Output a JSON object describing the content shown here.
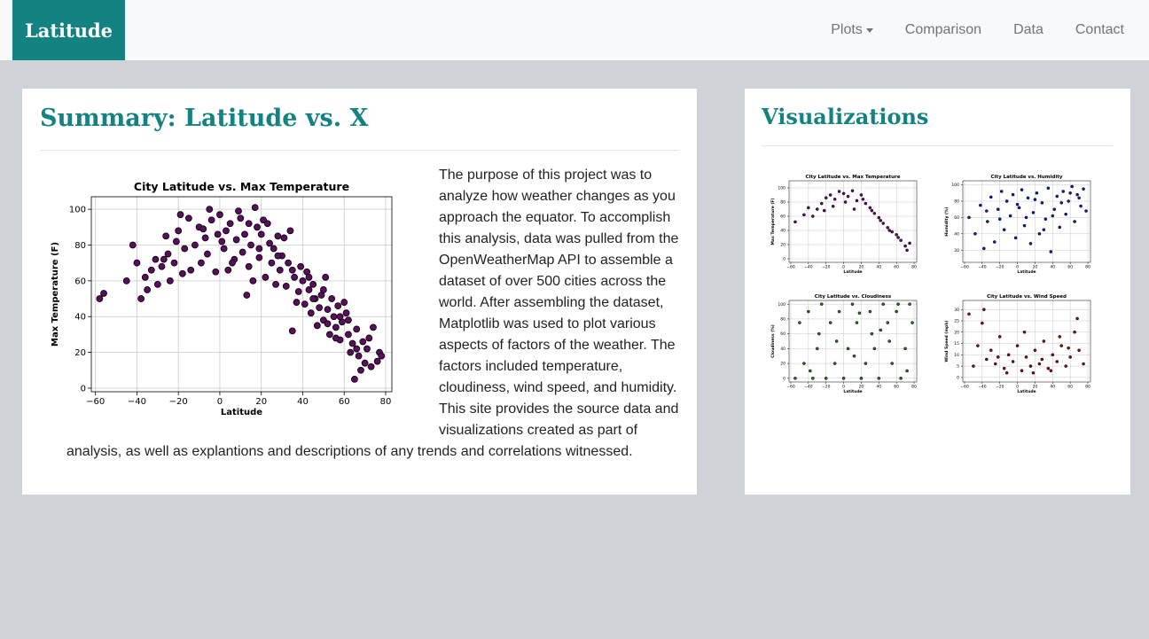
{
  "navbar": {
    "brand": "Latitude",
    "links": [
      {
        "label": "Plots",
        "dropdown": true
      },
      {
        "label": "Comparison"
      },
      {
        "label": "Data"
      },
      {
        "label": "Contact"
      }
    ]
  },
  "summary": {
    "title": "Summary: Latitude vs. X",
    "text": "The purpose of this project was to analyze how weather changes as you approach the equator. To accomplish this analysis, data was pulled from the OpenWeatherMap API to assemble a dataset of over 500 cities across the world. After assembling the dataset, Matplotlib was used to plot various aspects of factors of the weather. The factors included temperature, cloudiness, wind speed, and humidity. This site provides the source data and visualizations created as part of analysis, as well as explantions and descriptions of any trends and correlations witnessed."
  },
  "visualizations": {
    "title": "Visualizations"
  },
  "colors": {
    "brand": "#148280",
    "temperature": "#5b0c5e",
    "humidity": "#0b1f9a",
    "cloudiness": "#1e6a1e",
    "wind": "#7a0f0f"
  },
  "chart_data": [
    {
      "type": "scatter",
      "title": "City Latitude vs. Max Temperature",
      "xlabel": "Latitude",
      "ylabel": "Max Temperature (F)",
      "xlim": [
        -62,
        83
      ],
      "ylim": [
        -2,
        107
      ],
      "xticks": [
        -60,
        -40,
        -20,
        0,
        20,
        40,
        60,
        80
      ],
      "yticks": [
        0,
        20,
        40,
        60,
        80,
        100
      ],
      "grid": true,
      "color": "#5b0c5e",
      "points": [
        [
          -58,
          50
        ],
        [
          -56,
          53
        ],
        [
          -45,
          60
        ],
        [
          -42,
          80
        ],
        [
          -40,
          70
        ],
        [
          -38,
          50
        ],
        [
          -36,
          62
        ],
        [
          -35,
          55
        ],
        [
          -33,
          66
        ],
        [
          -31,
          72
        ],
        [
          -30,
          58
        ],
        [
          -28,
          68
        ],
        [
          -26,
          85
        ],
        [
          -25,
          75
        ],
        [
          -24,
          60
        ],
        [
          -22,
          70
        ],
        [
          -20,
          88
        ],
        [
          -19,
          97
        ],
        [
          -17,
          78
        ],
        [
          -15,
          95
        ],
        [
          -14,
          66
        ],
        [
          -12,
          80
        ],
        [
          -10,
          90
        ],
        [
          -9,
          70
        ],
        [
          -7,
          84
        ],
        [
          -5,
          100
        ],
        [
          -4,
          94
        ],
        [
          -2,
          65
        ],
        [
          -1,
          86
        ],
        [
          0,
          97
        ],
        [
          2,
          78
        ],
        [
          3,
          88
        ],
        [
          5,
          92
        ],
        [
          7,
          72
        ],
        [
          8,
          83
        ],
        [
          10,
          95
        ],
        [
          11,
          76
        ],
        [
          12,
          86
        ],
        [
          13,
          52
        ],
        [
          14,
          68
        ],
        [
          15,
          80
        ],
        [
          17,
          101
        ],
        [
          18,
          90
        ],
        [
          19,
          73
        ],
        [
          20,
          86
        ],
        [
          21,
          94
        ],
        [
          22,
          62
        ],
        [
          24,
          81
        ],
        [
          25,
          70
        ],
        [
          26,
          78
        ],
        [
          28,
          85
        ],
        [
          29,
          66
        ],
        [
          30,
          74
        ],
        [
          32,
          57
        ],
        [
          33,
          70
        ],
        [
          34,
          88
        ],
        [
          35,
          32
        ],
        [
          36,
          62
        ],
        [
          38,
          54
        ],
        [
          39,
          68
        ],
        [
          40,
          60
        ],
        [
          41,
          47
        ],
        [
          42,
          65
        ],
        [
          43,
          55
        ],
        [
          44,
          42
        ],
        [
          45,
          58
        ],
        [
          46,
          50
        ],
        [
          47,
          35
        ],
        [
          48,
          45
        ],
        [
          49,
          52
        ],
        [
          50,
          38
        ],
        [
          51,
          62
        ],
        [
          52,
          44
        ],
        [
          53,
          30
        ],
        [
          54,
          50
        ],
        [
          55,
          40
        ],
        [
          56,
          34
        ],
        [
          57,
          46
        ],
        [
          58,
          27
        ],
        [
          59,
          37
        ],
        [
          60,
          48
        ],
        [
          61,
          42
        ],
        [
          62,
          30
        ],
        [
          63,
          20
        ],
        [
          64,
          25
        ],
        [
          65,
          5
        ],
        [
          66,
          33
        ],
        [
          67,
          18
        ],
        [
          68,
          10
        ],
        [
          69,
          26
        ],
        [
          70,
          14
        ],
        [
          71,
          22
        ],
        [
          73,
          12
        ],
        [
          74,
          34
        ],
        [
          76,
          15
        ],
        [
          77,
          20
        ],
        [
          78,
          18
        ],
        [
          -21,
          82
        ],
        [
          -6,
          75
        ],
        [
          4,
          66
        ],
        [
          9,
          99
        ],
        [
          16,
          60
        ],
        [
          23,
          92
        ],
        [
          27,
          58
        ],
        [
          31,
          84
        ],
        [
          37,
          48
        ],
        [
          43,
          62
        ],
        [
          50,
          55
        ],
        [
          56,
          28
        ],
        [
          62,
          38
        ],
        [
          -27,
          72
        ],
        [
          -18,
          64
        ],
        [
          -8,
          89
        ],
        [
          1,
          82
        ],
        [
          6,
          70
        ],
        [
          14,
          92
        ],
        [
          19,
          78
        ],
        [
          28,
          74
        ],
        [
          35,
          66
        ],
        [
          45,
          50
        ],
        [
          52,
          36
        ],
        [
          58,
          40
        ],
        [
          66,
          22
        ],
        [
          72,
          28
        ]
      ]
    },
    {
      "type": "scatter",
      "title": "City Latitude vs. Max Temperature",
      "xlabel": "Latitude",
      "ylabel": "Max Temperature (F)",
      "xlim": [
        -62,
        83
      ],
      "ylim": [
        -5,
        110
      ],
      "xticks": [
        -60,
        -40,
        -20,
        0,
        20,
        40,
        60,
        80
      ],
      "yticks": [
        0,
        20,
        40,
        60,
        80,
        100
      ],
      "grid": true,
      "color": "#5b0c5e",
      "points": [
        [
          -55,
          52
        ],
        [
          -45,
          62
        ],
        [
          -40,
          72
        ],
        [
          -35,
          60
        ],
        [
          -30,
          70
        ],
        [
          -25,
          78
        ],
        [
          -20,
          86
        ],
        [
          -15,
          90
        ],
        [
          -10,
          84
        ],
        [
          -5,
          95
        ],
        [
          0,
          92
        ],
        [
          5,
          88
        ],
        [
          10,
          96
        ],
        [
          15,
          82
        ],
        [
          20,
          90
        ],
        [
          25,
          78
        ],
        [
          30,
          72
        ],
        [
          35,
          64
        ],
        [
          40,
          58
        ],
        [
          45,
          50
        ],
        [
          50,
          44
        ],
        [
          55,
          38
        ],
        [
          60,
          34
        ],
        [
          65,
          26
        ],
        [
          70,
          18
        ],
        [
          75,
          22
        ],
        [
          -22,
          68
        ],
        [
          -12,
          74
        ],
        [
          2,
          80
        ],
        [
          12,
          70
        ],
        [
          22,
          84
        ],
        [
          32,
          68
        ],
        [
          42,
          54
        ],
        [
          52,
          40
        ],
        [
          62,
          30
        ],
        [
          72,
          12
        ]
      ]
    },
    {
      "type": "scatter",
      "title": "City Latitude vs. Humidity",
      "xlabel": "Latitude",
      "ylabel": "Humidity (%)",
      "xlim": [
        -62,
        83
      ],
      "ylim": [
        5,
        105
      ],
      "xticks": [
        -60,
        -40,
        -20,
        0,
        20,
        40,
        60,
        80
      ],
      "yticks": [
        20,
        40,
        60,
        80,
        100
      ],
      "grid": true,
      "color": "#0b1f9a",
      "points": [
        [
          -55,
          60
        ],
        [
          -48,
          40
        ],
        [
          -42,
          75
        ],
        [
          -38,
          22
        ],
        [
          -34,
          55
        ],
        [
          -30,
          85
        ],
        [
          -26,
          30
        ],
        [
          -22,
          70
        ],
        [
          -18,
          92
        ],
        [
          -15,
          45
        ],
        [
          -12,
          80
        ],
        [
          -8,
          62
        ],
        [
          -5,
          88
        ],
        [
          -2,
          35
        ],
        [
          2,
          72
        ],
        [
          5,
          94
        ],
        [
          8,
          50
        ],
        [
          12,
          84
        ],
        [
          15,
          28
        ],
        [
          18,
          66
        ],
        [
          22,
          90
        ],
        [
          25,
          40
        ],
        [
          28,
          78
        ],
        [
          32,
          58
        ],
        [
          35,
          96
        ],
        [
          38,
          18
        ],
        [
          42,
          70
        ],
        [
          45,
          86
        ],
        [
          48,
          48
        ],
        [
          52,
          92
        ],
        [
          55,
          64
        ],
        [
          58,
          80
        ],
        [
          62,
          98
        ],
        [
          65,
          55
        ],
        [
          68,
          88
        ],
        [
          72,
          74
        ],
        [
          75,
          95
        ],
        [
          78,
          68
        ],
        [
          -20,
          58
        ],
        [
          0,
          76
        ],
        [
          20,
          82
        ],
        [
          40,
          62
        ],
        [
          60,
          90
        ],
        [
          -35,
          68
        ],
        [
          10,
          60
        ],
        [
          30,
          45
        ],
        [
          50,
          78
        ],
        [
          70,
          84
        ]
      ]
    },
    {
      "type": "scatter",
      "title": "City Latitude vs. Cloudiness",
      "xlabel": "Latitude",
      "ylabel": "Cloudiness (%)",
      "xlim": [
        -62,
        83
      ],
      "ylim": [
        -5,
        105
      ],
      "xticks": [
        -60,
        -40,
        -20,
        0,
        20,
        40,
        60,
        80
      ],
      "yticks": [
        0,
        20,
        40,
        60,
        80,
        100
      ],
      "grid": true,
      "color": "#1e6a1e",
      "points": [
        [
          -55,
          0
        ],
        [
          -50,
          75
        ],
        [
          -45,
          20
        ],
        [
          -40,
          90
        ],
        [
          -35,
          0
        ],
        [
          -30,
          40
        ],
        [
          -25,
          100
        ],
        [
          -20,
          0
        ],
        [
          -15,
          75
        ],
        [
          -10,
          20
        ],
        [
          -5,
          90
        ],
        [
          0,
          0
        ],
        [
          5,
          40
        ],
        [
          10,
          100
        ],
        [
          15,
          75
        ],
        [
          20,
          0
        ],
        [
          25,
          20
        ],
        [
          30,
          90
        ],
        [
          35,
          40
        ],
        [
          40,
          0
        ],
        [
          45,
          100
        ],
        [
          50,
          75
        ],
        [
          55,
          20
        ],
        [
          60,
          90
        ],
        [
          65,
          0
        ],
        [
          70,
          40
        ],
        [
          75,
          100
        ],
        [
          78,
          75
        ],
        [
          -28,
          60
        ],
        [
          -8,
          50
        ],
        [
          12,
          30
        ],
        [
          32,
          60
        ],
        [
          52,
          50
        ],
        [
          72,
          10
        ],
        [
          -38,
          10
        ],
        [
          18,
          88
        ],
        [
          42,
          65
        ],
        [
          62,
          100
        ]
      ]
    },
    {
      "type": "scatter",
      "title": "City Latitude vs. Wind Speed",
      "xlabel": "Latitude",
      "ylabel": "Wind Speed (mph)",
      "xlim": [
        -62,
        83
      ],
      "ylim": [
        -2,
        34
      ],
      "xticks": [
        -60,
        -40,
        -20,
        0,
        20,
        40,
        60,
        80
      ],
      "yticks": [
        0,
        5,
        10,
        15,
        20,
        25,
        30
      ],
      "grid": true,
      "color": "#7a0f0f",
      "points": [
        [
          -55,
          28
        ],
        [
          -50,
          5
        ],
        [
          -45,
          14
        ],
        [
          -40,
          24
        ],
        [
          -35,
          8
        ],
        [
          -30,
          12
        ],
        [
          -25,
          6
        ],
        [
          -20,
          18
        ],
        [
          -15,
          4
        ],
        [
          -10,
          10
        ],
        [
          -5,
          7
        ],
        [
          0,
          14
        ],
        [
          5,
          3
        ],
        [
          10,
          9
        ],
        [
          15,
          5
        ],
        [
          20,
          12
        ],
        [
          25,
          6
        ],
        [
          30,
          16
        ],
        [
          35,
          4
        ],
        [
          40,
          10
        ],
        [
          45,
          7
        ],
        [
          50,
          14
        ],
        [
          55,
          5
        ],
        [
          60,
          9
        ],
        [
          65,
          20
        ],
        [
          70,
          12
        ],
        [
          75,
          6
        ],
        [
          -38,
          30
        ],
        [
          -22,
          9
        ],
        [
          8,
          20
        ],
        [
          28,
          8
        ],
        [
          48,
          18
        ],
        [
          68,
          26
        ],
        [
          -12,
          2
        ],
        [
          18,
          2
        ],
        [
          38,
          3
        ],
        [
          58,
          13
        ]
      ]
    }
  ]
}
